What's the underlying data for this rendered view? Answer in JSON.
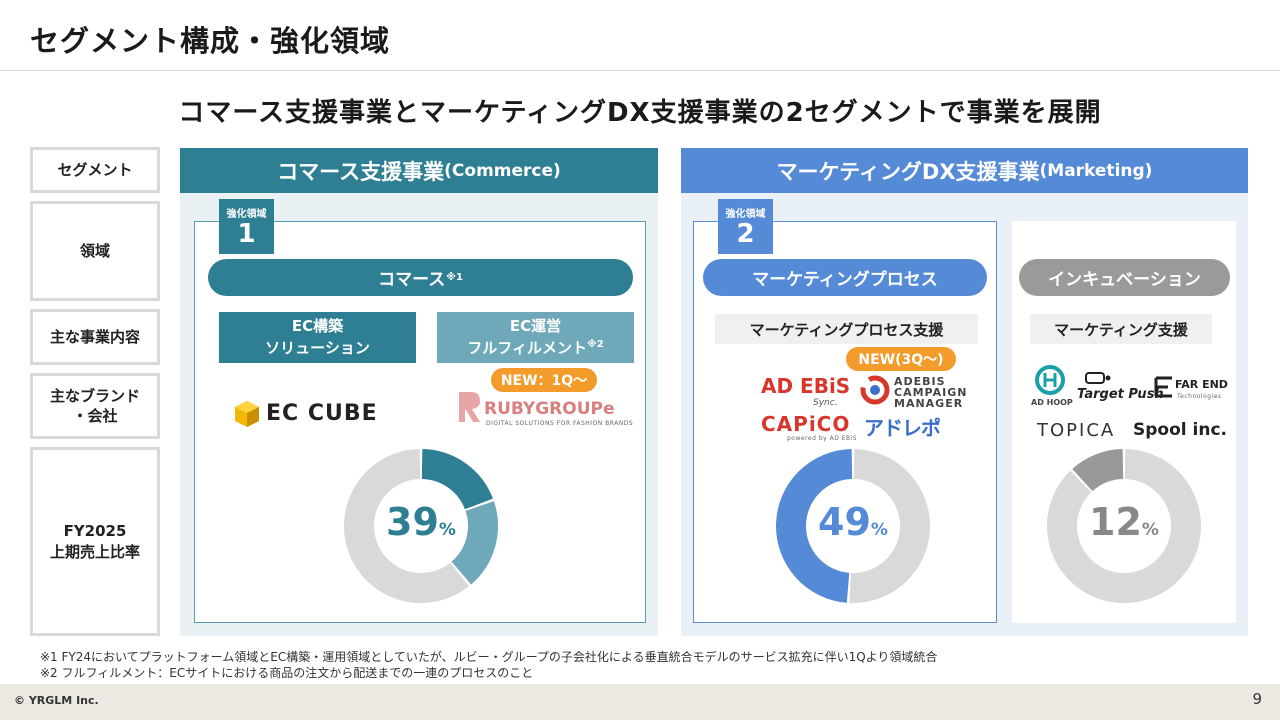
{
  "page": {
    "title": "セグメント構成・強化領域",
    "subtitle": "コマース支援事業とマーケティングDX支援事業の2セグメントで事業を展開",
    "copyright": "© YRGLM Inc.",
    "page_number": "9"
  },
  "row_labels": [
    "セグメント",
    "領域",
    "主な事業内容",
    "主なブランド\n・会社",
    "FY2025\n上期売上比率"
  ],
  "commerce": {
    "header": "コマース支援事業",
    "header_en": "(Commerce)",
    "tag_label": "強化領域",
    "tag_number": "1",
    "pill": "コマース",
    "pill_note": "※1",
    "biz1_line1": "EC構築",
    "biz1_line2": "ソリューション",
    "biz2_line1": "EC運営",
    "biz2_line2": "フルフィルメント",
    "biz2_note": "※2",
    "new_badge": "NEW：1Q〜",
    "brand_eccube": "EC CUBE",
    "brand_ruby": "RUBYGROUPe",
    "brand_ruby_sub": "DIGITAL SOLUTIONS FOR FASHION BRANDS",
    "percent": "39",
    "percent_unit": "%",
    "share": 0.39,
    "accent": "#2e7f93",
    "accent2": "#6fa8b8"
  },
  "marketing": {
    "header": "マーケティングDX支援事業",
    "header_en": "(Marketing)",
    "tag_label": "強化領域",
    "tag_number": "2",
    "pill_process": "マーケティングプロセス",
    "pill_incubation": "インキュベーション",
    "biz_process": "マーケティングプロセス支援",
    "biz_incubation": "マーケティング支援",
    "new_badge": "NEW(3Q〜)",
    "brand_adebis": "AD EBiS",
    "brand_adebis_sync": "Sync.",
    "brand_campaign": "ADEBIS CAMPAIGN MANAGER",
    "brand_capico": "CAPiCO",
    "brand_capico_sub": "powered by AD EBiS",
    "brand_adrepo": "アドレポ",
    "brand_adhoop": "AD HOOP",
    "brand_targetpush": "Target Push",
    "brand_farend": "FAR END",
    "brand_farend_sub": "Technologies",
    "brand_topica": "TOPICA",
    "brand_spool": "Spool inc.",
    "percent_process": "49",
    "percent_incubation": "12",
    "percent_unit": "%",
    "share_process": 0.49,
    "share_incubation": 0.12,
    "accent": "#548ad6",
    "accent_gray": "#999999"
  },
  "footnotes": [
    "※1 FY24においてプラットフォーム領域とEC構築・運用領域としていたが、ルビー・グループの子会社化による垂直統合モデルのサービス拡充に伴い1Qより領域統合",
    "※2 フルフィルメント：ECサイトにおける商品の注文から配送までの一連のプロセスのこと"
  ]
}
